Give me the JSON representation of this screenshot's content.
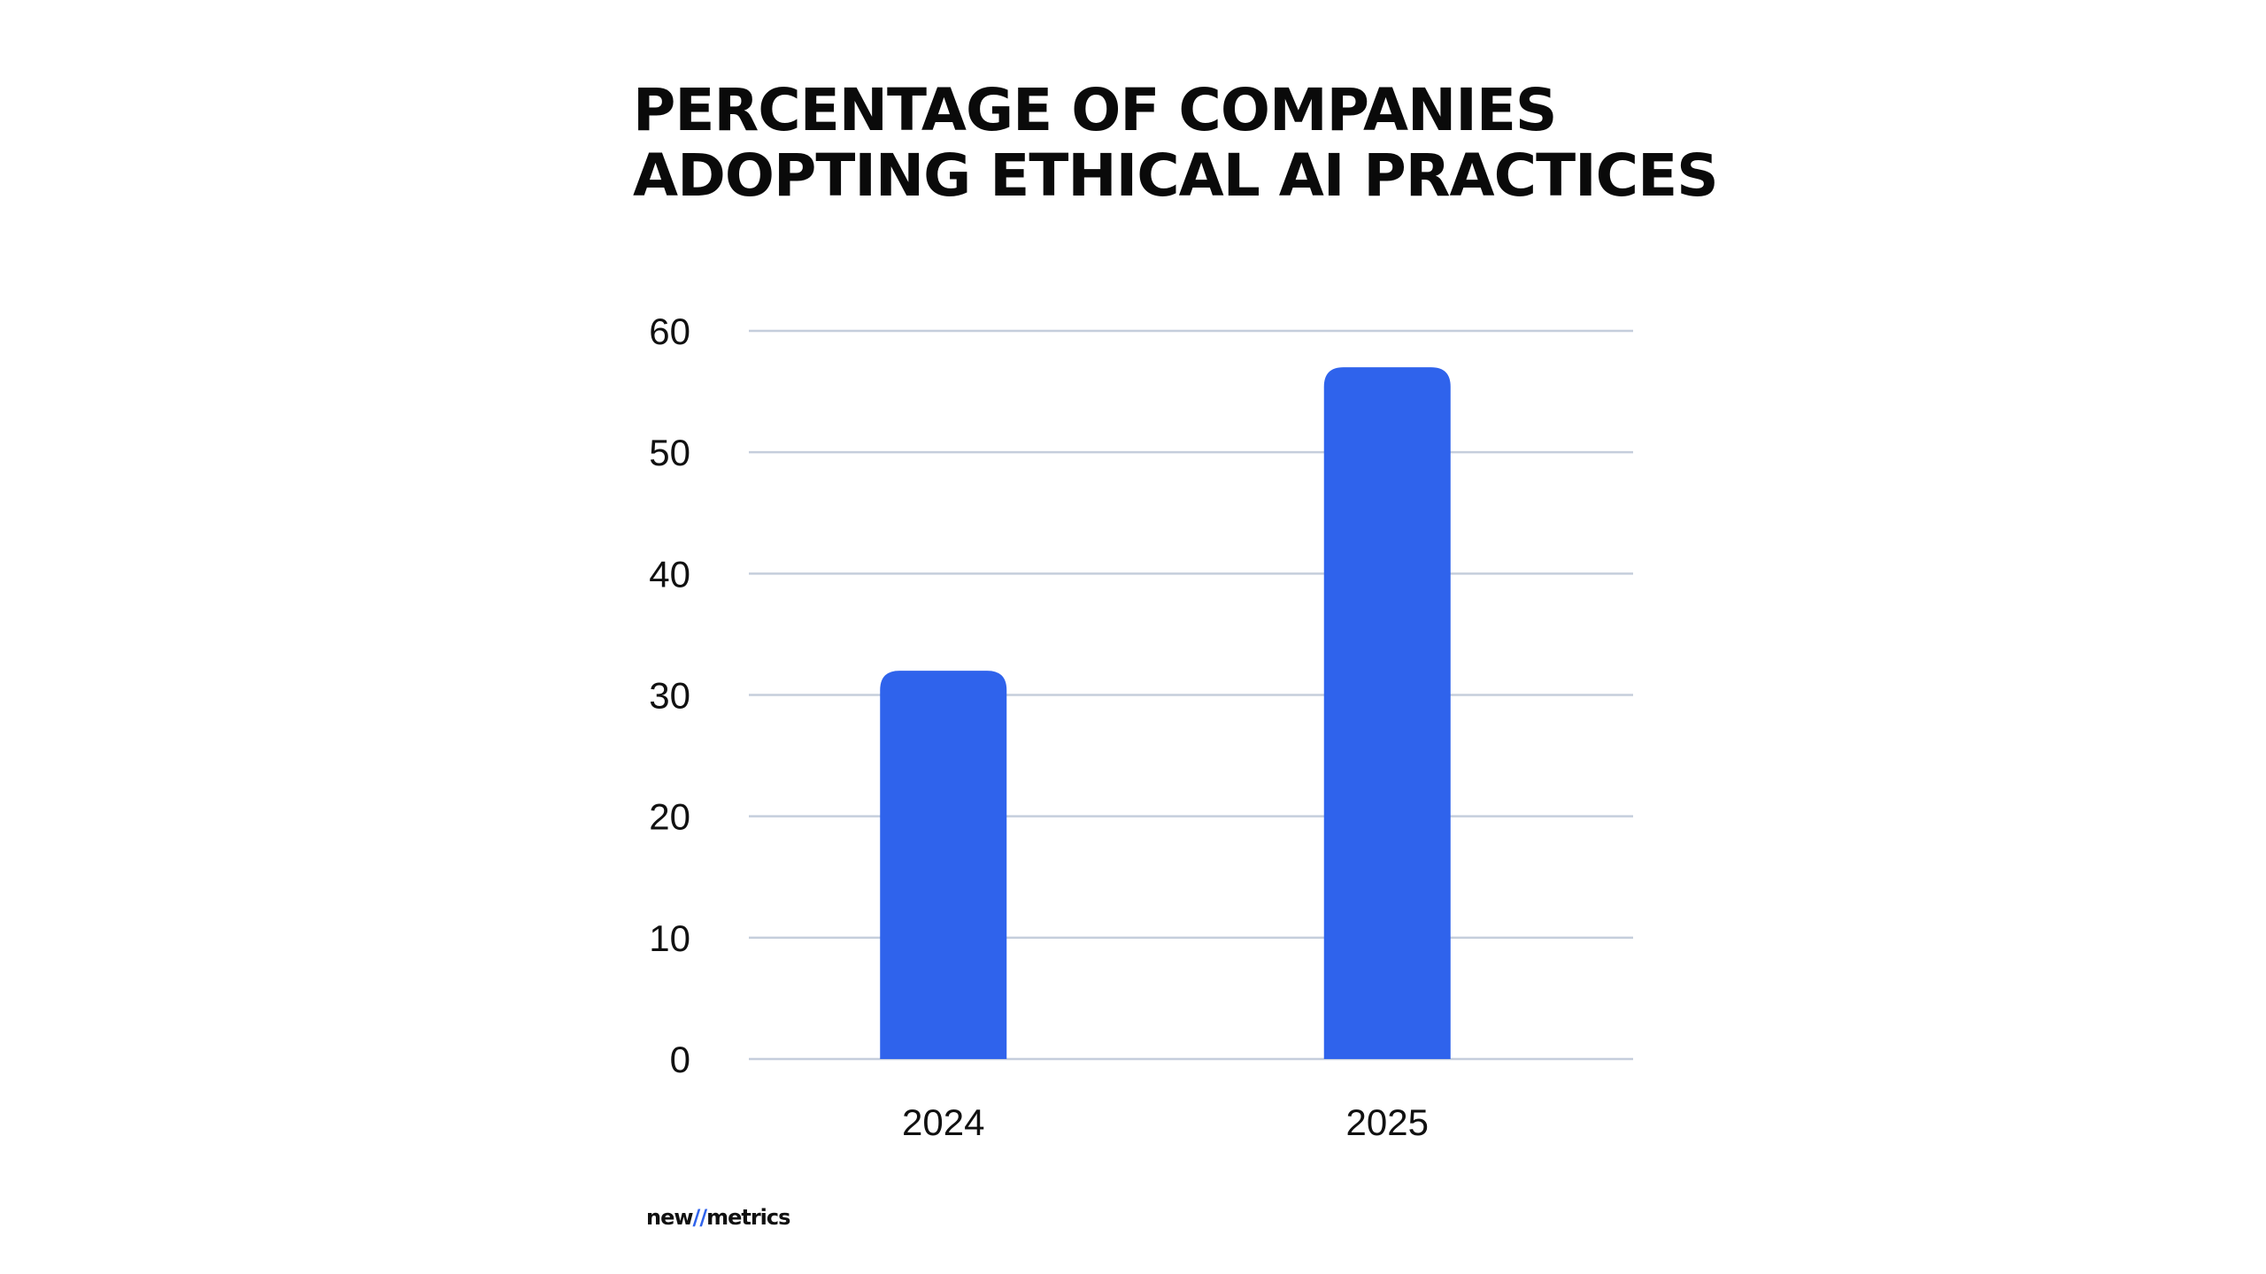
{
  "chart_data": {
    "type": "bar",
    "title": [
      "PERCENTAGE OF COMPANIES",
      "ADOPTING ETHICAL AI PRACTICES"
    ],
    "categories": [
      "2024",
      "2025"
    ],
    "values": [
      32,
      57
    ],
    "xlabel": "",
    "ylabel": "",
    "ylim": [
      0,
      60
    ],
    "yticks": [
      0,
      10,
      20,
      30,
      40,
      50,
      60
    ],
    "grid": true,
    "bar_color": "#2f63ec",
    "grid_color": "#c5cedc"
  },
  "logo": {
    "left": "new",
    "sep": "//",
    "right": "metrics"
  }
}
